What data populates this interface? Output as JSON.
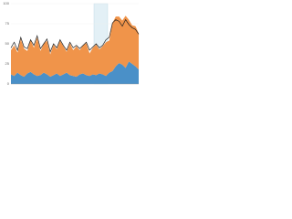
{
  "chart_data": {
    "type": "area",
    "categories": [
      null,
      null,
      null,
      null,
      null,
      null,
      null,
      null,
      null,
      null,
      null,
      null,
      null,
      null,
      null,
      null,
      null,
      null,
      null,
      null,
      null,
      null,
      null,
      null,
      null,
      null,
      null,
      null,
      null,
      null,
      null,
      null,
      null,
      null,
      null,
      null,
      null,
      null,
      null,
      null
    ],
    "series": [
      {
        "color": "#4a90c8",
        "values": [
          12,
          10,
          14,
          11,
          9,
          13,
          15,
          12,
          10,
          11,
          14,
          12,
          9,
          11,
          13,
          10,
          12,
          14,
          11,
          10,
          9,
          12,
          13,
          11,
          10,
          12,
          11,
          13,
          12,
          10,
          14,
          16,
          22,
          26,
          24,
          20,
          28,
          25,
          22,
          18
        ]
      },
      {
        "color": "#f0944a",
        "values": [
          30,
          38,
          25,
          45,
          35,
          28,
          40,
          33,
          48,
          30,
          36,
          42,
          28,
          38,
          30,
          44,
          35,
          26,
          40,
          32,
          38,
          30,
          35,
          40,
          28,
          33,
          38,
          30,
          35,
          42,
          40,
          60,
          62,
          58,
          55,
          65,
          52,
          48,
          50,
          45
        ]
      },
      {
        "color": "#222222",
        "type": "line",
        "values": [
          45,
          52,
          42,
          58,
          46,
          44,
          55,
          48,
          60,
          44,
          50,
          56,
          40,
          50,
          45,
          55,
          48,
          42,
          52,
          45,
          48,
          44,
          48,
          52,
          42,
          46,
          50,
          45,
          48,
          55,
          58,
          76,
          80,
          78,
          72,
          80,
          74,
          70,
          68,
          62
        ]
      }
    ],
    "ylim": [
      0,
      100
    ],
    "yticks": [
      0,
      25,
      50,
      75,
      100
    ],
    "grid": true
  }
}
